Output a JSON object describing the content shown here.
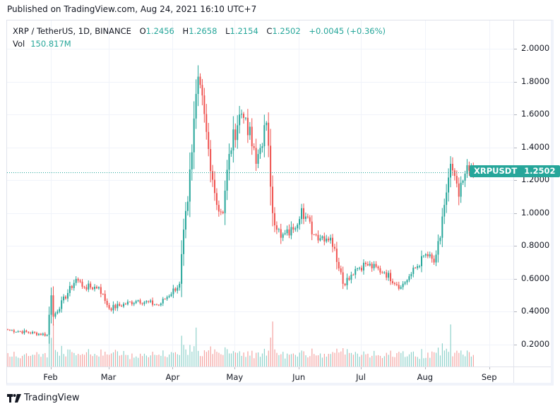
{
  "published": "Published on TradingView.com, Aug 24, 2021 16:10 UTC+7",
  "legend": {
    "symbol": "XRP / TetherUS, 1D, BINANCE",
    "open_label": "O",
    "open": "1.2456",
    "high_label": "H",
    "high": "1.2658",
    "low_label": "L",
    "low": "1.2154",
    "close_label": "C",
    "close": "1.2502",
    "change": "+0.0045 (+0.36%)",
    "vol_label": "Vol",
    "vol": "150.817M"
  },
  "price_tag": {
    "symbol": "XRPUSDT",
    "price": "1.2502"
  },
  "footer": {
    "brand": "TradingView"
  },
  "colors": {
    "up": "#26a69a",
    "down": "#ef5350",
    "up_vol": "#8fd2cb",
    "down_vol": "#f4a3a1",
    "grid": "#f0f3fa"
  },
  "chart_data": {
    "type": "candlestick",
    "title": "XRP / TetherUS, 1D, BINANCE",
    "xlabel": "",
    "ylabel": "",
    "ylim": [
      0.06,
      2.1
    ],
    "price_ticks": [
      "2.0000",
      "1.8000",
      "1.6000",
      "1.4000",
      "1.2000",
      "1.0000",
      "0.8000",
      "0.6000",
      "0.4000",
      "0.2000"
    ],
    "time_ticks": [
      "Feb",
      "Mar",
      "Apr",
      "May",
      "Jun",
      "Jul",
      "Aug",
      "Sep"
    ],
    "last_close": 1.2502,
    "legend_position": "top-left",
    "grid": true,
    "anchor_points": [
      {
        "date": "2021-01-11",
        "price": 0.29
      },
      {
        "date": "2021-01-30",
        "price": 0.26
      },
      {
        "date": "2021-02-01",
        "price": 0.5
      },
      {
        "date": "2021-02-02",
        "price": 0.37
      },
      {
        "date": "2021-02-13",
        "price": 0.6
      },
      {
        "date": "2021-02-17",
        "price": 0.55
      },
      {
        "date": "2021-02-24",
        "price": 0.55
      },
      {
        "date": "2021-03-01",
        "price": 0.42
      },
      {
        "date": "2021-03-15",
        "price": 0.47
      },
      {
        "date": "2021-03-25",
        "price": 0.44
      },
      {
        "date": "2021-04-04",
        "price": 0.57
      },
      {
        "date": "2021-04-06",
        "price": 0.9
      },
      {
        "date": "2021-04-08",
        "price": 1.07
      },
      {
        "date": "2021-04-10",
        "price": 1.37
      },
      {
        "date": "2021-04-13",
        "price": 1.83
      },
      {
        "date": "2021-04-14",
        "price": 1.78
      },
      {
        "date": "2021-04-18",
        "price": 1.39
      },
      {
        "date": "2021-04-22",
        "price": 1.05
      },
      {
        "date": "2021-04-25",
        "price": 1.0
      },
      {
        "date": "2021-04-28",
        "price": 1.36
      },
      {
        "date": "2021-05-03",
        "price": 1.6
      },
      {
        "date": "2021-05-06",
        "price": 1.58
      },
      {
        "date": "2021-05-11",
        "price": 1.3
      },
      {
        "date": "2021-05-16",
        "price": 1.55
      },
      {
        "date": "2021-05-19",
        "price": 1.0
      },
      {
        "date": "2021-05-23",
        "price": 0.85
      },
      {
        "date": "2021-05-29",
        "price": 0.9
      },
      {
        "date": "2021-06-02",
        "price": 1.03
      },
      {
        "date": "2021-06-08",
        "price": 0.87
      },
      {
        "date": "2021-06-16",
        "price": 0.85
      },
      {
        "date": "2021-06-21",
        "price": 0.64
      },
      {
        "date": "2021-06-22",
        "price": 0.57
      },
      {
        "date": "2021-06-28",
        "price": 0.66
      },
      {
        "date": "2021-07-03",
        "price": 0.69
      },
      {
        "date": "2021-07-12",
        "price": 0.64
      },
      {
        "date": "2021-07-20",
        "price": 0.55
      },
      {
        "date": "2021-07-25",
        "price": 0.63
      },
      {
        "date": "2021-08-01",
        "price": 0.75
      },
      {
        "date": "2021-08-05",
        "price": 0.7
      },
      {
        "date": "2021-08-08",
        "price": 0.85
      },
      {
        "date": "2021-08-10",
        "price": 1.05
      },
      {
        "date": "2021-08-13",
        "price": 1.3
      },
      {
        "date": "2021-08-14",
        "price": 1.26
      },
      {
        "date": "2021-08-17",
        "price": 1.1
      },
      {
        "date": "2021-08-20",
        "price": 1.24
      },
      {
        "date": "2021-08-24",
        "price": 1.2502
      }
    ],
    "volume_peak_dates": [
      "2021-02-02",
      "2021-04-12",
      "2021-05-19",
      "2021-08-13"
    ]
  }
}
